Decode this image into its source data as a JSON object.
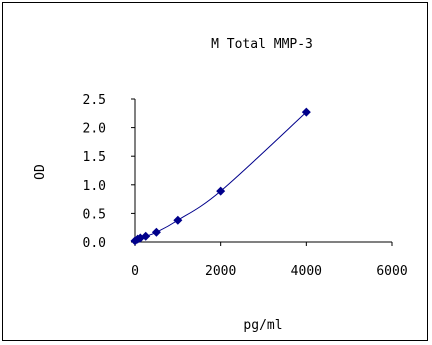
{
  "chart_data": {
    "type": "scatter",
    "title": "M Total MMP-3",
    "xlabel": "pg/ml",
    "ylabel": "OD",
    "xlim": [
      0,
      6000
    ],
    "ylim": [
      0,
      2.5
    ],
    "x_ticks": [
      "0",
      "2000",
      "4000",
      "6000"
    ],
    "y_ticks": [
      "0.0",
      "0.5",
      "1.0",
      "1.5",
      "2.0",
      "2.5"
    ],
    "grid": false,
    "legend": "none",
    "series": [
      {
        "points": [
          {
            "x": 0,
            "y": 0.02
          },
          {
            "x": 62.5,
            "y": 0.05
          },
          {
            "x": 125,
            "y": 0.07
          },
          {
            "x": 250,
            "y": 0.1
          },
          {
            "x": 500,
            "y": 0.17
          },
          {
            "x": 1000,
            "y": 0.38
          },
          {
            "x": 2000,
            "y": 0.89
          },
          {
            "x": 4000,
            "y": 2.27
          }
        ],
        "fit_curve": true
      }
    ],
    "colors": {
      "marker": "#00008b",
      "line": "#00008b",
      "axis": "#000000"
    }
  }
}
